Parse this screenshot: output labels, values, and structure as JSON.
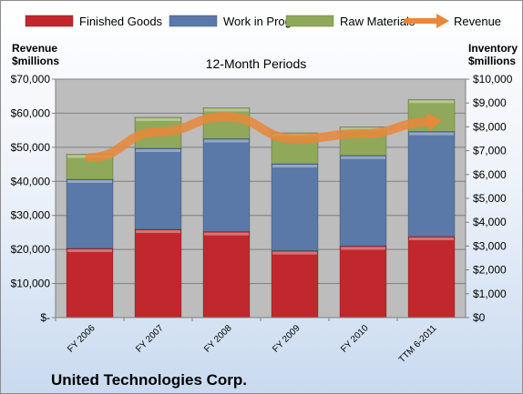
{
  "chart_data": {
    "type": "bar",
    "stacked": true,
    "title": "",
    "subtitle": "12-Month Periods",
    "categories": [
      "FY 2006",
      "FY 2007",
      "FY 2008",
      "FY 2009",
      "FY 2010",
      "TTM 6-2011"
    ],
    "series": [
      {
        "name": "Finished Goods",
        "axis": "right",
        "color": "#c0282d",
        "values": [
          2900,
          3700,
          3600,
          2800,
          3000,
          3400
        ]
      },
      {
        "name": "Work in Progress",
        "axis": "right",
        "color": "#5a79a8",
        "values": [
          2900,
          3400,
          3900,
          3650,
          3800,
          4400
        ]
      },
      {
        "name": "Raw Materials",
        "axis": "right",
        "color": "#8fa85a",
        "values": [
          1050,
          1300,
          1300,
          1300,
          1200,
          1350
        ]
      },
      {
        "name": "Revenue",
        "axis": "left",
        "type": "line",
        "color": "#e9873a",
        "values": [
          47000,
          54500,
          59000,
          52500,
          54000,
          57500
        ]
      }
    ],
    "y_left": {
      "label_line1": "Revenue",
      "label_line2": "$millions",
      "ylim": [
        0,
        70000
      ],
      "ticks": [
        "$-",
        "$10,000",
        "$20,000",
        "$30,000",
        "$40,000",
        "$50,000",
        "$60,000",
        "$70,000"
      ]
    },
    "y_right": {
      "label_line1": "Inventory",
      "label_line2": "$millions",
      "ylim": [
        0,
        10000
      ],
      "ticks": [
        "$0",
        "$1,000",
        "$2,000",
        "$3,000",
        "$4,000",
        "$5,000",
        "$6,000",
        "$7,000",
        "$8,000",
        "$9,000",
        "$10,000"
      ]
    },
    "legend_position": "top",
    "grid": true
  },
  "footer": {
    "company": "United Technologies Corp."
  },
  "colors": {
    "plot_bg": "#bfbfbf",
    "grid": "#7f7f7f",
    "axis": "#7f7f7f"
  }
}
